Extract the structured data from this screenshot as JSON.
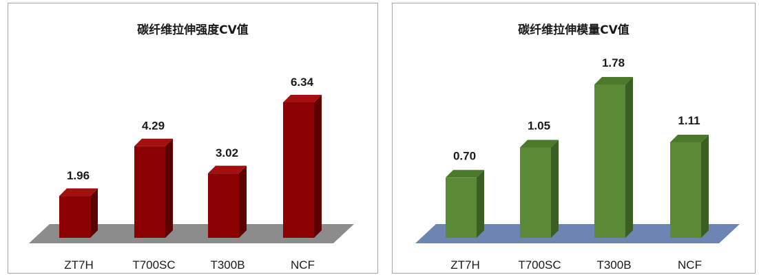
{
  "chart_data": [
    {
      "type": "bar",
      "title": "碳纤维拉伸强度CV值",
      "categories": [
        "ZT7H",
        "T700SC",
        "T300B",
        "NCF"
      ],
      "values": [
        1.96,
        4.29,
        3.02,
        6.34
      ],
      "value_labels": [
        "1.96",
        "4.29",
        "3.02",
        "6.34"
      ],
      "ylim": [
        0,
        6.34
      ],
      "colors": {
        "front": "#8b0000",
        "top": "#a50f0f",
        "side": "#5e0000",
        "floor": "#8c8c8c"
      },
      "grid": false,
      "legend": "none"
    },
    {
      "type": "bar",
      "title": "碳纤维拉伸模量CV值",
      "categories": [
        "ZT7H",
        "T700SC",
        "T300B",
        "NCF"
      ],
      "values": [
        0.7,
        1.05,
        1.78,
        1.11
      ],
      "value_labels": [
        "0.70",
        "1.05",
        "1.78",
        "1.11"
      ],
      "ylim": [
        0,
        1.78
      ],
      "colors": {
        "front": "#5a8a35",
        "top": "#4a7a2a",
        "side": "#3b5f22",
        "floor": "#6e85b3"
      },
      "grid": false,
      "legend": "none"
    }
  ]
}
